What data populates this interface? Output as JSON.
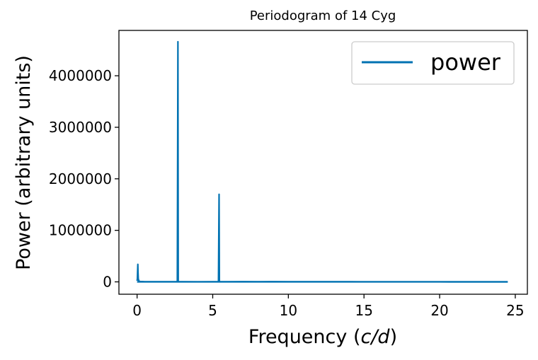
{
  "chart_data": {
    "type": "line",
    "title": "Periodogram of 14 Cyg",
    "xlabel": "Frequency (c/d)",
    "ylabel": "Power (arbitrary units)",
    "xlim": [
      -1.2,
      25.8
    ],
    "ylim": [
      -240000,
      4880000
    ],
    "xticks": [
      0,
      5,
      10,
      15,
      20,
      25
    ],
    "xtick_labels": [
      "0",
      "5",
      "10",
      "15",
      "20",
      "25"
    ],
    "yticks": [
      0,
      1000000,
      2000000,
      3000000,
      4000000
    ],
    "ytick_labels": [
      "0",
      "1000000",
      "2000000",
      "3000000",
      "4000000"
    ],
    "grid": false,
    "legend": {
      "position": "top-right",
      "entries": [
        "power"
      ]
    },
    "colors": {
      "series": "#0072b2",
      "axes": "#000000",
      "background": "#ffffff",
      "legend_border": "#cccccc"
    },
    "series": [
      {
        "name": "power",
        "x": [
          0.0,
          0.02,
          0.04,
          0.05,
          0.06,
          0.08,
          0.12,
          0.2,
          0.35,
          0.5,
          1.0,
          1.5,
          2.0,
          2.5,
          2.66,
          2.7,
          2.72,
          2.74,
          2.78,
          3.0,
          4.0,
          5.0,
          5.38,
          5.42,
          5.44,
          5.46,
          5.5,
          6.0,
          7.0,
          8.0,
          9.0,
          10.0,
          12.0,
          14.0,
          16.0,
          18.0,
          20.0,
          22.0,
          24.5
        ],
        "y": [
          20000,
          60000,
          250000,
          340000,
          200000,
          60000,
          15000,
          8000,
          5000,
          3000,
          2000,
          1500,
          1500,
          2000,
          3000,
          4660000,
          3000,
          6000,
          2000,
          1500,
          1000,
          1500,
          2000,
          1700000,
          2000,
          8000,
          2000,
          3000,
          4000,
          3000,
          4000,
          3000,
          3000,
          1500,
          1000,
          800,
          800,
          600,
          500
        ]
      }
    ]
  }
}
